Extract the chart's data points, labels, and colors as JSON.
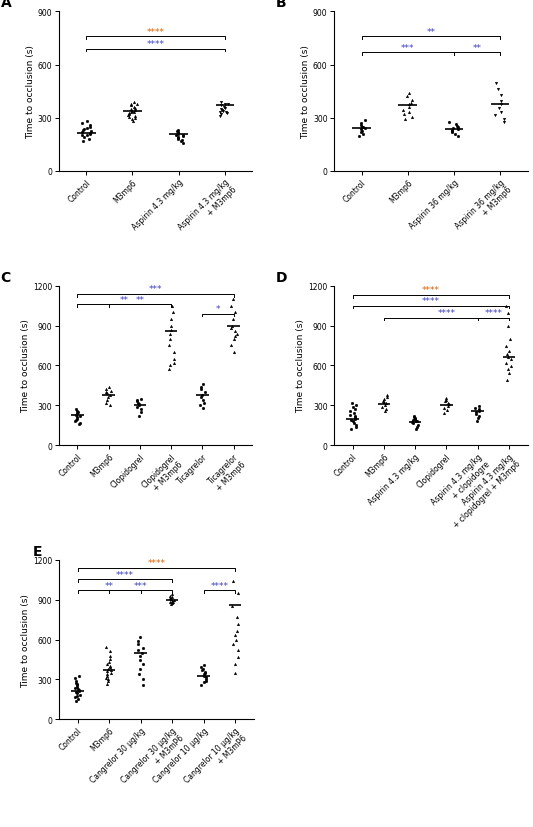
{
  "panels": {
    "A": {
      "title": "A",
      "ylabel": "Time to occlusion (s)",
      "ylim": [
        0,
        900
      ],
      "yticks": [
        0,
        300,
        600,
        900
      ],
      "groups": [
        "Control",
        "M3mp6",
        "Aspirin 4.3 mg/kg",
        "Aspirin 4.3 mg/kg\n+ M3mp6"
      ],
      "means": [
        215,
        340,
        210,
        370
      ],
      "data": [
        [
          170,
          180,
          190,
          200,
          205,
          210,
          215,
          220,
          225,
          230,
          235,
          240,
          250,
          260,
          270,
          280
        ],
        [
          280,
          290,
          300,
          305,
          310,
          315,
          320,
          325,
          330,
          335,
          340,
          345,
          350,
          355,
          360,
          370,
          375,
          380,
          390
        ],
        [
          160,
          170,
          175,
          180,
          185,
          190,
          195,
          200,
          205,
          210,
          215,
          220,
          225,
          230
        ],
        [
          310,
          320,
          325,
          330,
          335,
          340,
          345,
          350,
          355,
          360,
          370,
          375,
          380,
          390
        ]
      ],
      "markers": [
        "o",
        "^",
        "o",
        "v"
      ],
      "significance": [
        {
          "from": 1,
          "to": 4,
          "y": 760,
          "text": "****",
          "color": "#e06000"
        },
        {
          "from": 1,
          "to": 4,
          "y": 690,
          "text": "****",
          "color": "#4040c0"
        }
      ]
    },
    "B": {
      "title": "B",
      "ylabel": "Time to occlusion (s)",
      "ylim": [
        0,
        900
      ],
      "yticks": [
        0,
        300,
        600,
        900
      ],
      "groups": [
        "Control",
        "M3mp6",
        "Aspirin 36 mg/kg",
        "Aspirin 36 mg/kg\n+ M3mp6"
      ],
      "means": [
        240,
        370,
        235,
        375
      ],
      "data": [
        [
          195,
          210,
          220,
          225,
          235,
          240,
          245,
          250,
          260,
          270,
          285
        ],
        [
          290,
          305,
          320,
          330,
          345,
          360,
          375,
          385,
          400,
          420,
          440
        ],
        [
          195,
          210,
          218,
          225,
          230,
          235,
          240,
          247,
          253,
          262,
          278
        ],
        [
          275,
          295,
          315,
          335,
          355,
          375,
          395,
          430,
          460,
          495
        ]
      ],
      "markers": [
        "o",
        "^",
        "o",
        "v"
      ],
      "significance": [
        {
          "from": 1,
          "to": 4,
          "y": 760,
          "text": "**",
          "color": "#4040c0"
        },
        {
          "from": 1,
          "to": 3,
          "y": 670,
          "text": "***",
          "color": "#4040c0"
        },
        {
          "from": 3,
          "to": 4,
          "y": 670,
          "text": "**",
          "color": "#4040c0"
        }
      ]
    },
    "C": {
      "title": "C",
      "ylabel": "Time to occlusion (s)",
      "ylim": [
        0,
        1200
      ],
      "yticks": [
        0,
        300,
        600,
        900,
        1200
      ],
      "groups": [
        "Control",
        "M3mp6",
        "Clopidogrel",
        "Clopidogrel\n+ M3mp6",
        "Ticagrelor",
        "Ticagrelor\n+ M3mp6"
      ],
      "means": [
        230,
        380,
        300,
        860,
        380,
        900
      ],
      "data": [
        [
          160,
          170,
          180,
          190,
          200,
          210,
          220,
          230,
          240,
          250,
          260,
          270
        ],
        [
          300,
          320,
          340,
          360,
          380,
          390,
          400,
          410,
          420,
          440
        ],
        [
          220,
          250,
          270,
          285,
          300,
          310,
          320,
          330,
          340,
          350
        ],
        [
          570,
          600,
          620,
          650,
          700,
          750,
          800,
          840,
          870,
          900,
          950,
          1000,
          1050
        ],
        [
          280,
          300,
          320,
          340,
          360,
          380,
          400,
          420,
          440,
          460
        ],
        [
          700,
          750,
          800,
          820,
          840,
          860,
          880,
          900,
          950,
          1000,
          1050,
          1100
        ]
      ],
      "markers": [
        "o",
        "^",
        "o",
        "^",
        "o",
        "^"
      ],
      "significance": [
        {
          "from": 1,
          "to": 6,
          "y": 1140,
          "text": "***",
          "color": "#4040c0"
        },
        {
          "from": 1,
          "to": 4,
          "y": 1060,
          "text": "**",
          "color": "#4040c0"
        },
        {
          "from": 2,
          "to": 4,
          "y": 1060,
          "text": "**",
          "color": "#4040c0"
        },
        {
          "from": 5,
          "to": 6,
          "y": 990,
          "text": "*",
          "color": "#4040c0"
        }
      ]
    },
    "D": {
      "title": "D",
      "ylabel": "Time to occlusion (s)",
      "ylim": [
        0,
        1200
      ],
      "yticks": [
        0,
        300,
        600,
        900,
        1200
      ],
      "groups": [
        "Control",
        "M3mp6",
        "Aspirin 4.3 mg/kg",
        "Clopidogrel",
        "Aspirin 4.3 mg/kg\n+ clopidogre",
        "Aspirin 4.3 mg/kg\n+ clopidogrel + M3mp6"
      ],
      "means": [
        200,
        310,
        175,
        305,
        255,
        660
      ],
      "data": [
        [
          120,
          140,
          155,
          170,
          180,
          190,
          200,
          210,
          220,
          230,
          245,
          260,
          275,
          290,
          305,
          320
        ],
        [
          255,
          275,
          290,
          305,
          315,
          325,
          335,
          345,
          360,
          375
        ],
        [
          125,
          140,
          152,
          163,
          172,
          180,
          185,
          190,
          197,
          205,
          213,
          222
        ],
        [
          245,
          265,
          280,
          295,
          308,
          318,
          330,
          342,
          358
        ],
        [
          185,
          205,
          222,
          237,
          250,
          260,
          270,
          282,
          298
        ],
        [
          490,
          540,
          570,
          595,
          620,
          645,
          665,
          685,
          710,
          745,
          795,
          895,
          995,
          1045
        ]
      ],
      "markers": [
        "o",
        "^",
        "o",
        "^",
        "o",
        "^"
      ],
      "significance": [
        {
          "from": 1,
          "to": 6,
          "y": 1130,
          "text": "****",
          "color": "#e06000"
        },
        {
          "from": 1,
          "to": 6,
          "y": 1050,
          "text": "****",
          "color": "#4040c0"
        },
        {
          "from": 2,
          "to": 6,
          "y": 960,
          "text": "****",
          "color": "#4040c0"
        },
        {
          "from": 5,
          "to": 6,
          "y": 960,
          "text": "****",
          "color": "#4040c0"
        }
      ]
    },
    "E": {
      "title": "E",
      "ylabel": "Time to occlusion (s)",
      "ylim": [
        0,
        1200
      ],
      "yticks": [
        0,
        300,
        600,
        900,
        1200
      ],
      "groups": [
        "Control",
        "M3mp6",
        "Cangrelor 30 μg/kg",
        "Cangrelor 30 μg/kg\n+ M3mP6",
        "Cangrelor 10 μg/kg",
        "Cangrelor 10 μg/kg\n+ M3mP6"
      ],
      "means": [
        210,
        370,
        500,
        895,
        330,
        860
      ],
      "data": [
        [
          140,
          155,
          165,
          175,
          185,
          195,
          205,
          213,
          220,
          228,
          237,
          245,
          255,
          265,
          277,
          292,
          308,
          325
        ],
        [
          265,
          285,
          300,
          315,
          330,
          342,
          352,
          362,
          372,
          382,
          392,
          405,
          418,
          435,
          455,
          480,
          512,
          548
        ],
        [
          260,
          300,
          340,
          380,
          420,
          450,
          475,
          500,
          520,
          540,
          565,
          590,
          620
        ],
        [
          865,
          872,
          880,
          887,
          893,
          898,
          904,
          910,
          918,
          928,
          942
        ],
        [
          258,
          278,
          292,
          307,
          318,
          328,
          338,
          348,
          358,
          368,
          382,
          396,
          412
        ],
        [
          350,
          415,
          470,
          520,
          565,
          598,
          632,
          668,
          718,
          772,
          855,
          950,
          1042
        ]
      ],
      "markers": [
        "o",
        "^",
        "o",
        "^",
        "o",
        "^"
      ],
      "significance": [
        {
          "from": 1,
          "to": 6,
          "y": 1140,
          "text": "****",
          "color": "#e06000"
        },
        {
          "from": 1,
          "to": 4,
          "y": 1055,
          "text": "****",
          "color": "#4040c0"
        },
        {
          "from": 1,
          "to": 3,
          "y": 970,
          "text": "**",
          "color": "#4040c0"
        },
        {
          "from": 2,
          "to": 4,
          "y": 970,
          "text": "***",
          "color": "#4040c0"
        },
        {
          "from": 5,
          "to": 6,
          "y": 970,
          "text": "****",
          "color": "#4040c0"
        }
      ]
    }
  }
}
